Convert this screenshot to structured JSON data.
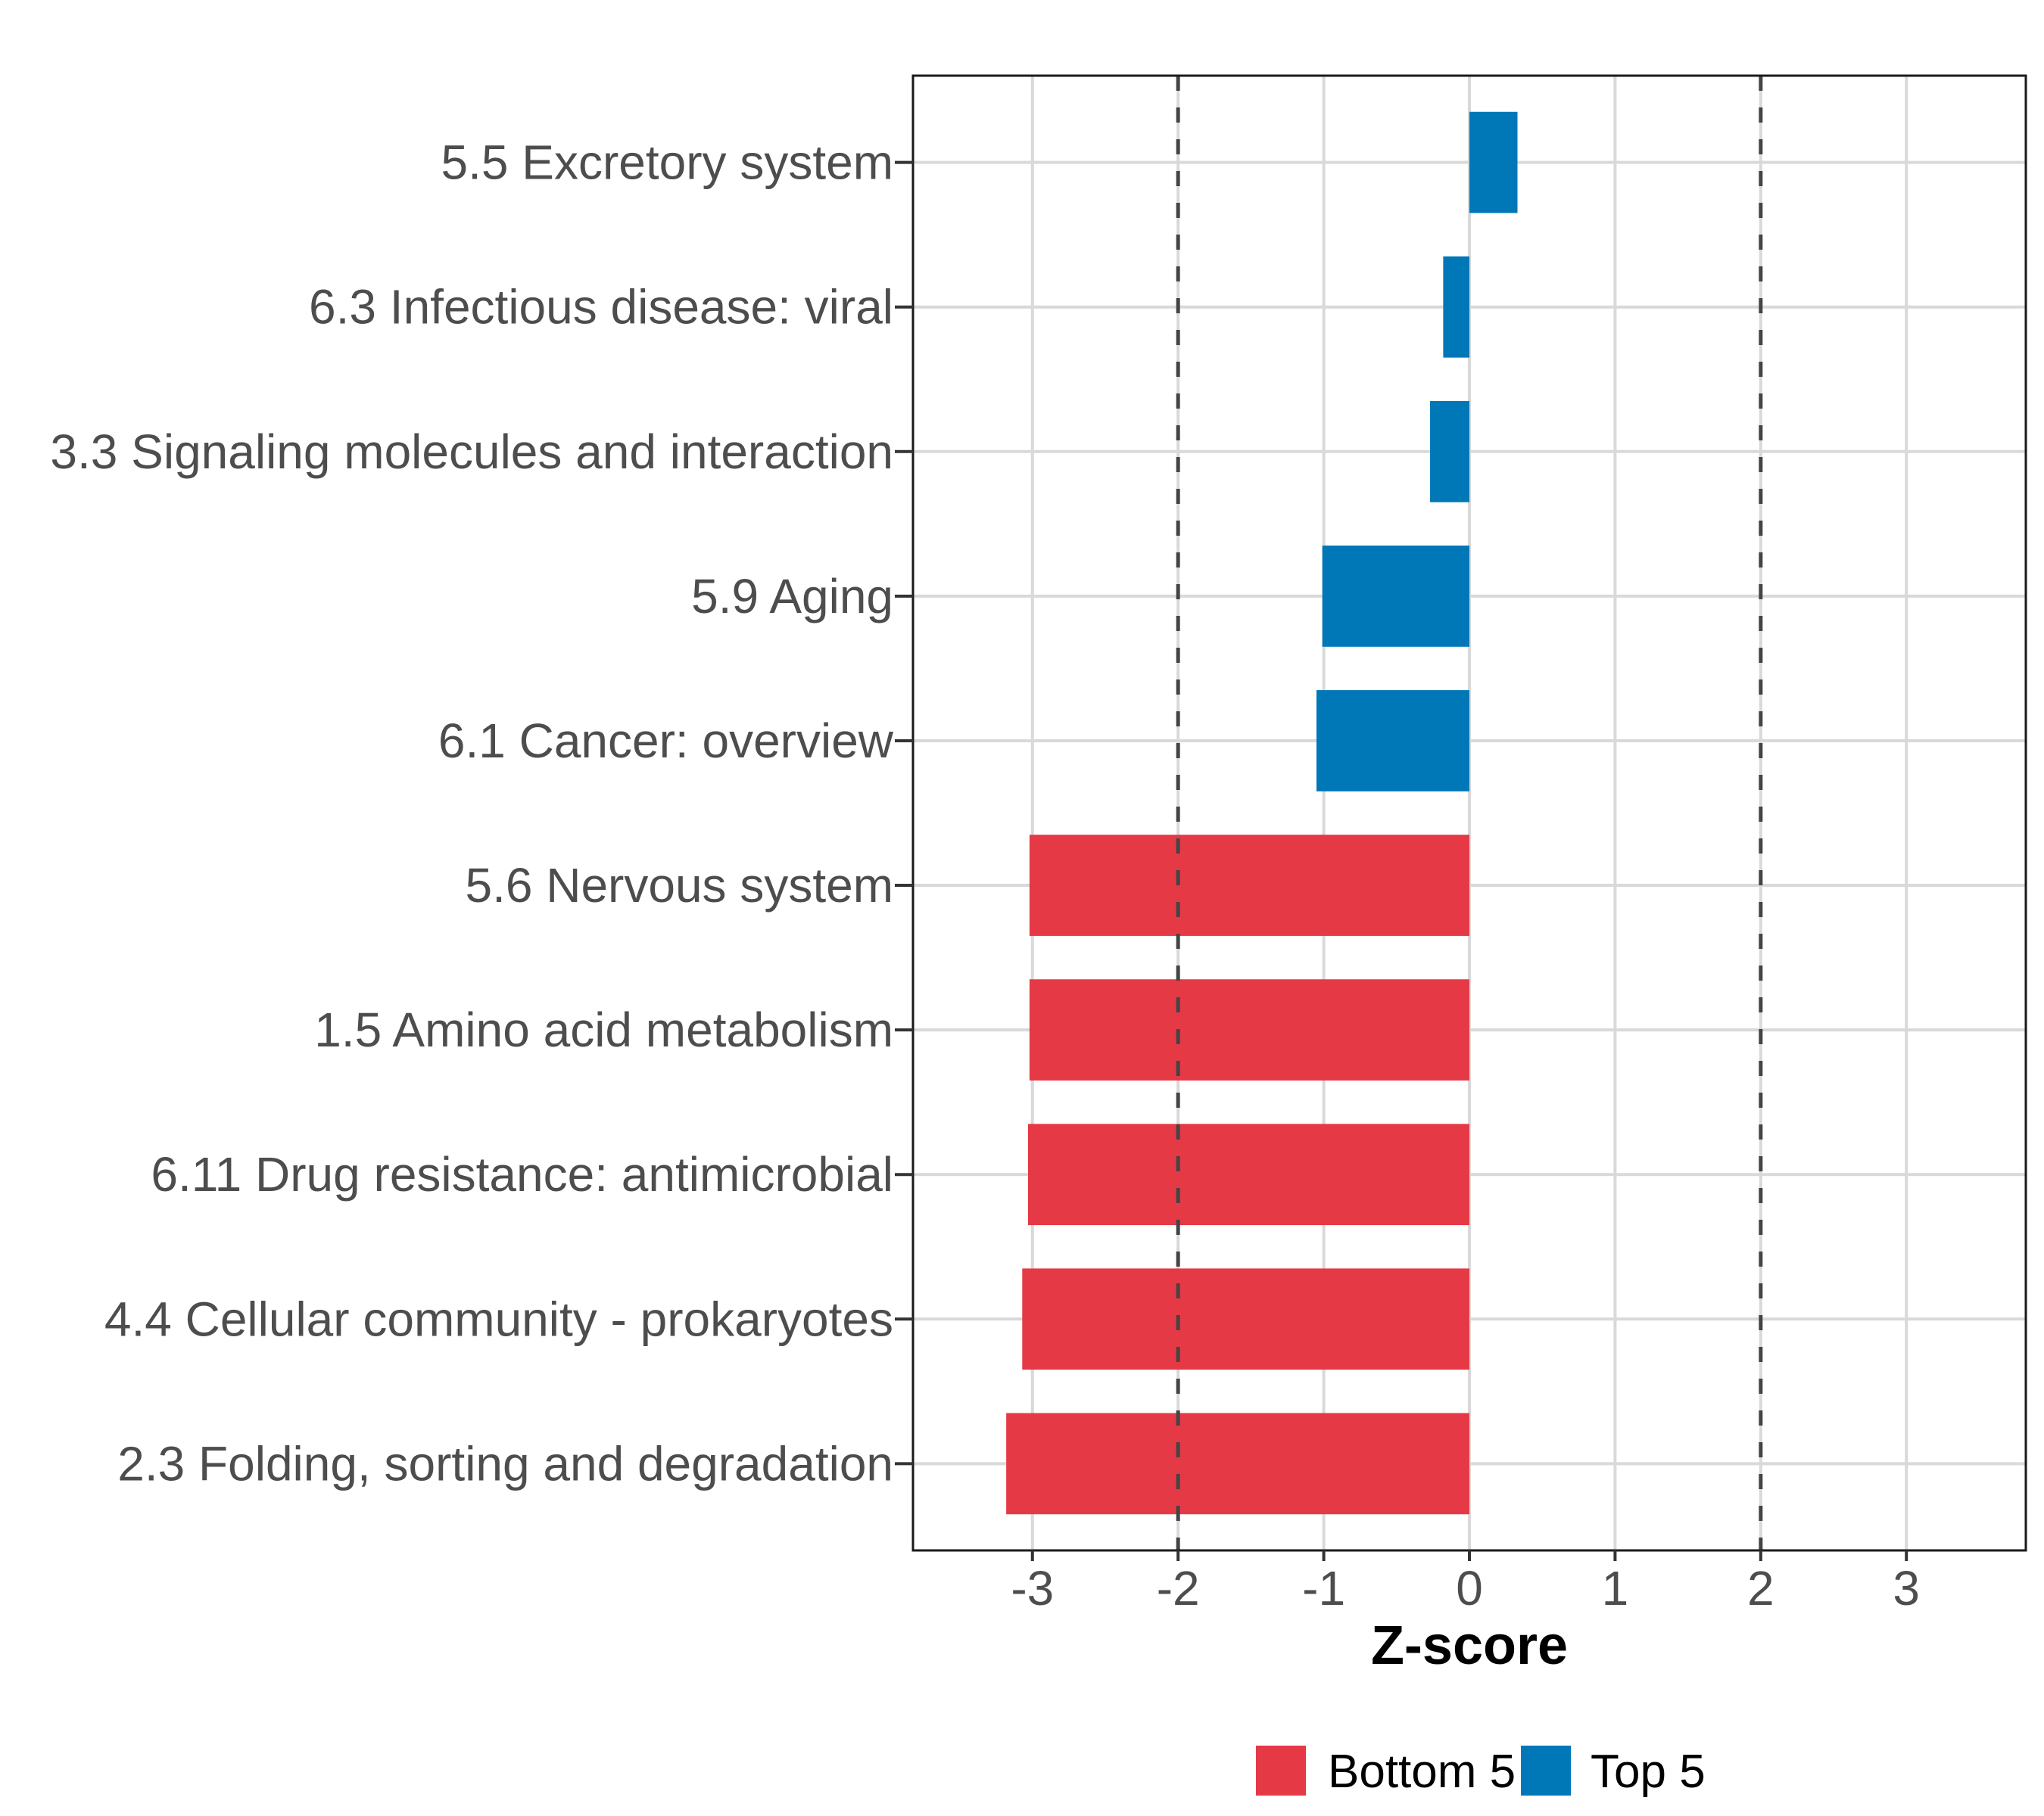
{
  "chart_data": {
    "type": "bar",
    "orientation": "horizontal",
    "title": "",
    "xlabel": "Z-score",
    "ylabel": "",
    "xlim": [
      -3.82,
      3.82
    ],
    "xticks": [
      -3,
      -2,
      -1,
      0,
      1,
      2,
      3
    ],
    "xtick_labels": [
      "-3",
      "-2",
      "-1",
      "0",
      "1",
      "2",
      "3"
    ],
    "grid": true,
    "reference_lines": [
      {
        "x": -2,
        "style": "dashed"
      },
      {
        "x": 2,
        "style": "dashed"
      }
    ],
    "categories": [
      "5.5 Excretory system",
      "6.3 Infectious disease: viral",
      "3.3 Signaling molecules and interaction",
      "5.9 Aging",
      "6.1 Cancer: overview",
      "5.6 Nervous system",
      "1.5 Amino acid metabolism",
      "6.11 Drug resistance: antimicrobial",
      "4.4 Cellular community - prokaryotes",
      "2.3 Folding, sorting and degradation"
    ],
    "values": [
      0.33,
      -0.18,
      -0.27,
      -1.01,
      -1.05,
      -3.02,
      -3.02,
      -3.03,
      -3.07,
      -3.18
    ],
    "groups": [
      "Top 5",
      "Top 5",
      "Top 5",
      "Top 5",
      "Top 5",
      "Bottom 5",
      "Bottom 5",
      "Bottom 5",
      "Bottom 5",
      "Bottom 5"
    ],
    "legend": {
      "placement": "bottom",
      "entries": [
        {
          "label": "Bottom 5",
          "color": "#e63946"
        },
        {
          "label": "Top 5",
          "color": "#0077b6"
        }
      ]
    },
    "colors": {
      "Bottom 5": "#e63946",
      "Top 5": "#0077b6"
    }
  }
}
